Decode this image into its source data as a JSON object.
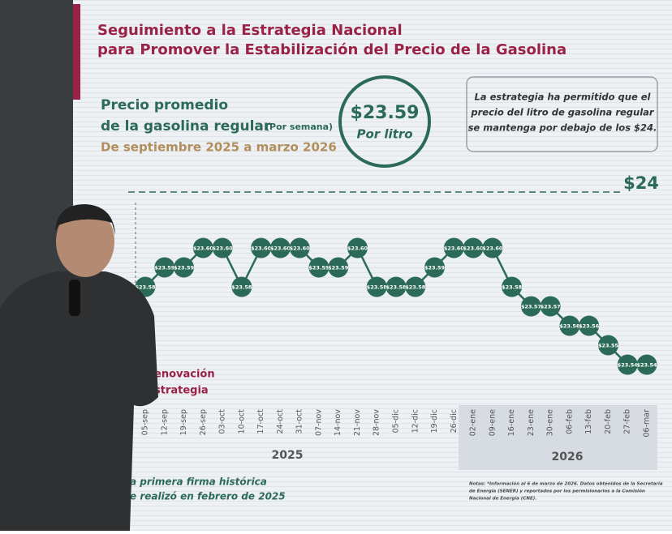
{
  "header": {
    "title_lines": [
      "Seguimiento a la Estrategia Nacional",
      "para Promover la Estabilización del Precio de la Gasolina"
    ]
  },
  "subtitle": {
    "line1": "Precio promedio",
    "line2": "de la gasolina regular",
    "line2_note": "(Por semana)",
    "period": "De septiembre 2025 a marzo 2026"
  },
  "badge": {
    "price": "$23.59",
    "unit": "Por litro"
  },
  "callout_lines": [
    "La estrategia ha permitido que el",
    "precio del litro de gasolina regular",
    "se mantenga por debajo de los $24."
  ],
  "reference_label": "$24",
  "side_note_lines": [
    "enovación",
    "strategia"
  ],
  "footer_lines": [
    "a primera firma histórica",
    "e realizó en febrero de 2025"
  ],
  "notes_lines": [
    "Notas: *Información al 6 de marzo de 2026. Datos obtenidos de la Secretaría",
    "de Energía (SENER) y reportados por los permisionarios a la Comisión",
    "Nacional de Energía (CNE)."
  ],
  "years": [
    "2025",
    "2026"
  ],
  "chart_data": {
    "type": "line",
    "color": "#2b6a57",
    "categories": [
      "05-sep",
      "12-sep",
      "19-sep",
      "26-sep",
      "03-oct",
      "10-oct",
      "17-oct",
      "24-oct",
      "31-oct",
      "07-nov",
      "14-nov",
      "21-nov",
      "28-nov",
      "05-dic",
      "12-dic",
      "19-dic",
      "26-dic",
      "02-ene",
      "09-ene",
      "16-ene",
      "23-ene",
      "30-ene",
      "06-feb",
      "13-feb",
      "20-feb",
      "27-feb",
      "06-mar"
    ],
    "values": [
      23.58,
      23.59,
      23.59,
      23.6,
      23.6,
      23.58,
      23.6,
      23.6,
      23.6,
      23.59,
      23.59,
      23.6,
      23.58,
      23.58,
      23.58,
      23.59,
      23.6,
      23.6,
      23.6,
      23.58,
      23.57,
      23.57,
      23.56,
      23.56,
      23.55,
      23.54,
      23.54
    ],
    "value_labels": [
      "$23.58",
      "$23.59",
      "$23.59",
      "$23.60",
      "$23.60",
      "$23.58",
      "$23.60",
      "$23.60",
      "$23.60",
      "$23.59",
      "$23.59",
      "$23.60",
      "$23.58",
      "$23.58",
      "$23.58",
      "$23.59",
      "$23.60",
      "$23.60",
      "$23.60",
      "$23.58",
      "$23.57",
      "$23.57",
      "$23.56",
      "$23.56",
      "$23.55",
      "$23.54",
      "$23.54"
    ],
    "ylim": [
      23.53,
      23.62
    ]
  }
}
